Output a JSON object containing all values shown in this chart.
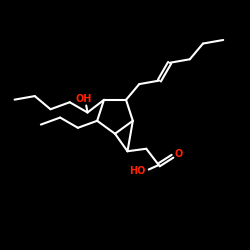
{
  "background_color": "#000000",
  "bond_color": "#ffffff",
  "O_color": "#ff2200",
  "lw": 1.5,
  "figsize": [
    2.5,
    2.5
  ],
  "dpi": 100,
  "OH_text": "OH",
  "HO_text": "HO",
  "O_text": "O",
  "font_size": 7.0
}
